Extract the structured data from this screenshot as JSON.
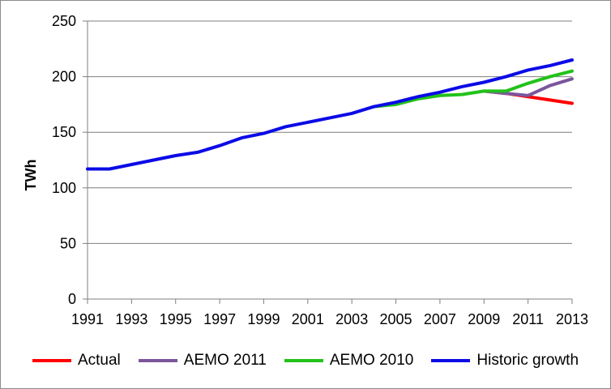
{
  "chart_data": {
    "type": "line",
    "title": "",
    "xlabel": "",
    "ylabel": "TWh",
    "ylim": [
      0,
      250
    ],
    "yticks": [
      0,
      50,
      100,
      150,
      200,
      250
    ],
    "xlim": [
      1991,
      2013
    ],
    "xticks": [
      1991,
      1993,
      1995,
      1997,
      1999,
      2001,
      2003,
      2005,
      2007,
      2009,
      2011,
      2013
    ],
    "grid": true,
    "legend_position": "bottom",
    "series": [
      {
        "name": "Actual",
        "color": "#ff0000",
        "x": [
          2009,
          2010,
          2011,
          2012,
          2013
        ],
        "y": [
          187,
          185,
          182,
          179,
          176
        ]
      },
      {
        "name": "AEMO 2011",
        "color": "#7b569c",
        "x": [
          2009,
          2010,
          2011,
          2012,
          2013
        ],
        "y": [
          187,
          185,
          183,
          192,
          198
        ]
      },
      {
        "name": "AEMO 2010",
        "color": "#22c21a",
        "x": [
          2004,
          2005,
          2006,
          2007,
          2008,
          2009,
          2010,
          2011,
          2012,
          2013
        ],
        "y": [
          173,
          175,
          180,
          183,
          184,
          187,
          187,
          194,
          200,
          205
        ]
      },
      {
        "name": "Historic growth",
        "color": "#0b0be6",
        "x": [
          1991,
          1992,
          1993,
          1994,
          1995,
          1996,
          1997,
          1998,
          1999,
          2000,
          2001,
          2002,
          2003,
          2004,
          2005,
          2006,
          2007,
          2008,
          2009,
          2010,
          2011,
          2012,
          2013
        ],
        "y": [
          117,
          117,
          121,
          125,
          129,
          132,
          138,
          145,
          149,
          155,
          159,
          163,
          167,
          173,
          177,
          182,
          186,
          191,
          195,
          200,
          206,
          210,
          215
        ]
      }
    ]
  }
}
